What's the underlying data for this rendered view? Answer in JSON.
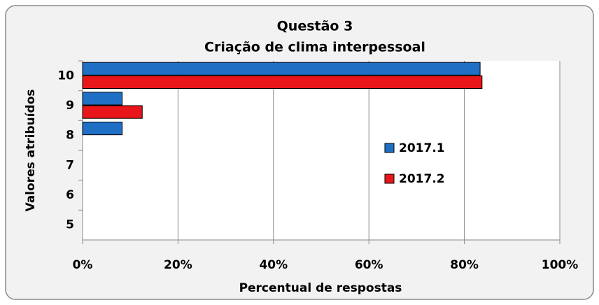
{
  "chart_data": {
    "type": "hbar",
    "title": "Questão 3",
    "subtitle": "Criação de clima interpessoal",
    "x_label": "Percentual de respostas",
    "y_label": "Valores atribuídos",
    "categories": [
      "10",
      "9",
      "8",
      "7",
      "6",
      "5"
    ],
    "series": [
      {
        "name": "2017.1",
        "color": "#1f6fc5",
        "values": [
          83.3,
          8.3,
          8.3,
          0,
          0,
          0
        ]
      },
      {
        "name": "2017.2",
        "color": "#e8161b",
        "values": [
          83.7,
          12.5,
          0,
          0,
          0,
          0
        ]
      }
    ],
    "xlim": [
      0,
      100
    ],
    "xticks": [
      {
        "value": 0,
        "label": "0%"
      },
      {
        "value": 20,
        "label": "20%"
      },
      {
        "value": 40,
        "label": "40%"
      },
      {
        "value": 60,
        "label": "60%"
      },
      {
        "value": 80,
        "label": "80%"
      },
      {
        "value": 100,
        "label": "100%"
      }
    ],
    "grid": true,
    "legend": "right"
  }
}
